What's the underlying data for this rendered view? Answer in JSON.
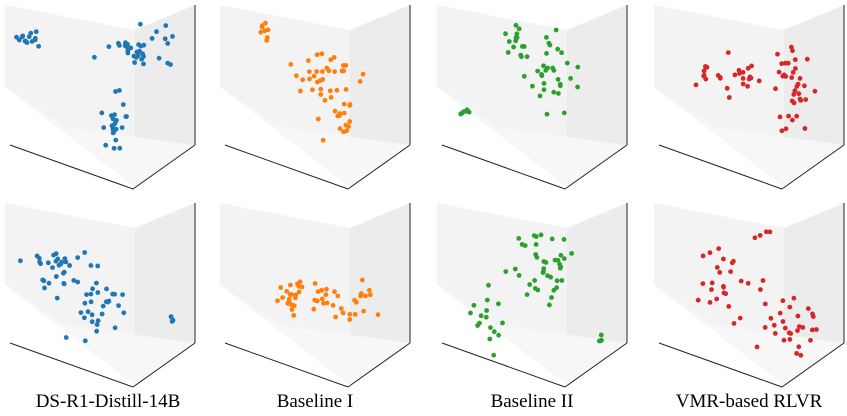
{
  "chart_data": [
    {
      "type": "scatter",
      "projection": "3d",
      "color": "#1f77b4",
      "grid": false,
      "title": "",
      "xlabel": "",
      "ylabel": "",
      "zlabel": "",
      "clusters": [
        {
          "cx": 0.1,
          "cy": 0.18,
          "n": 14,
          "sx": 0.03,
          "sy": 0.03,
          "dx": 0.0
        },
        {
          "cx": 0.72,
          "cy": 0.26,
          "n": 34,
          "sx": 0.1,
          "sy": 0.06,
          "dx": 0.0
        },
        {
          "cx": 0.58,
          "cy": 0.72,
          "n": 24,
          "sx": 0.04,
          "sy": 0.1,
          "dx": 0.0
        }
      ]
    },
    {
      "type": "scatter",
      "projection": "3d",
      "color": "#ff7f0e",
      "grid": false,
      "title": "",
      "xlabel": "",
      "ylabel": "",
      "zlabel": "",
      "clusters": [
        {
          "cx": 0.22,
          "cy": 0.12,
          "n": 8,
          "sx": 0.02,
          "sy": 0.03,
          "dx": 0.0
        },
        {
          "cx": 0.58,
          "cy": 0.42,
          "n": 32,
          "sx": 0.1,
          "sy": 0.07,
          "dx": 0.0
        },
        {
          "cx": 0.64,
          "cy": 0.66,
          "n": 18,
          "sx": 0.05,
          "sy": 0.07,
          "dx": 0.0
        }
      ]
    },
    {
      "type": "scatter",
      "projection": "3d",
      "color": "#2ca02c",
      "grid": false,
      "title": "",
      "xlabel": "",
      "ylabel": "",
      "zlabel": "",
      "clusters": [
        {
          "cx": 0.42,
          "cy": 0.22,
          "n": 16,
          "sx": 0.04,
          "sy": 0.1,
          "dx": 0.0
        },
        {
          "cx": 0.62,
          "cy": 0.42,
          "n": 30,
          "sx": 0.06,
          "sy": 0.12,
          "dx": 0.0
        },
        {
          "cx": 0.13,
          "cy": 0.64,
          "n": 6,
          "sx": 0.02,
          "sy": 0.01,
          "dx": 0.0
        }
      ]
    },
    {
      "type": "scatter",
      "projection": "3d",
      "color": "#d62728",
      "grid": false,
      "title": "",
      "xlabel": "",
      "ylabel": "",
      "zlabel": "",
      "clusters": [
        {
          "cx": 0.4,
          "cy": 0.42,
          "n": 28,
          "sx": 0.12,
          "sy": 0.06,
          "dx": 0.0
        },
        {
          "cx": 0.75,
          "cy": 0.48,
          "n": 34,
          "sx": 0.05,
          "sy": 0.16,
          "dx": 0.0
        }
      ]
    },
    {
      "type": "scatter",
      "projection": "3d",
      "color": "#1f77b4",
      "grid": false,
      "title": "",
      "xlabel": "",
      "ylabel": "",
      "zlabel": "",
      "clusters": [
        {
          "cx": 0.28,
          "cy": 0.4,
          "n": 34,
          "sx": 0.1,
          "sy": 0.08,
          "dx": 0.0
        },
        {
          "cx": 0.48,
          "cy": 0.62,
          "n": 28,
          "sx": 0.08,
          "sy": 0.1,
          "dx": 0.0
        },
        {
          "cx": 0.9,
          "cy": 0.7,
          "n": 4,
          "sx": 0.01,
          "sy": 0.01,
          "dx": 0.0
        }
      ]
    },
    {
      "type": "scatter",
      "projection": "3d",
      "color": "#ff7f0e",
      "grid": false,
      "title": "",
      "xlabel": "",
      "ylabel": "",
      "zlabel": "",
      "clusters": [
        {
          "cx": 0.36,
          "cy": 0.55,
          "n": 20,
          "sx": 0.06,
          "sy": 0.05,
          "dx": 0.0
        },
        {
          "cx": 0.62,
          "cy": 0.58,
          "n": 26,
          "sx": 0.1,
          "sy": 0.08,
          "dx": 0.0
        },
        {
          "cx": 0.78,
          "cy": 0.52,
          "n": 6,
          "sx": 0.02,
          "sy": 0.04,
          "dx": 0.0
        }
      ]
    },
    {
      "type": "scatter",
      "projection": "3d",
      "color": "#2ca02c",
      "grid": false,
      "title": "",
      "xlabel": "",
      "ylabel": "",
      "zlabel": "",
      "clusters": [
        {
          "cx": 0.58,
          "cy": 0.38,
          "n": 40,
          "sx": 0.08,
          "sy": 0.14,
          "dx": 0.0
        },
        {
          "cx": 0.26,
          "cy": 0.7,
          "n": 16,
          "sx": 0.06,
          "sy": 0.12,
          "dx": 0.0
        },
        {
          "cx": 0.88,
          "cy": 0.82,
          "n": 4,
          "sx": 0.01,
          "sy": 0.02,
          "dx": 0.0
        }
      ]
    },
    {
      "type": "scatter",
      "projection": "3d",
      "color": "#d62728",
      "grid": false,
      "title": "",
      "xlabel": "",
      "ylabel": "",
      "zlabel": "",
      "clusters": [
        {
          "cx": 0.4,
          "cy": 0.45,
          "n": 26,
          "sx": 0.12,
          "sy": 0.12,
          "dx": 0.0
        },
        {
          "cx": 0.72,
          "cy": 0.7,
          "n": 30,
          "sx": 0.12,
          "sy": 0.1,
          "dx": 0.0
        },
        {
          "cx": 0.62,
          "cy": 0.15,
          "n": 3,
          "sx": 0.05,
          "sy": 0.02,
          "dx": 0.0
        }
      ]
    }
  ],
  "captions": [
    "DS-R1-Distill-14B",
    "Baseline I",
    "Baseline II",
    "VMR-based RLVR"
  ]
}
